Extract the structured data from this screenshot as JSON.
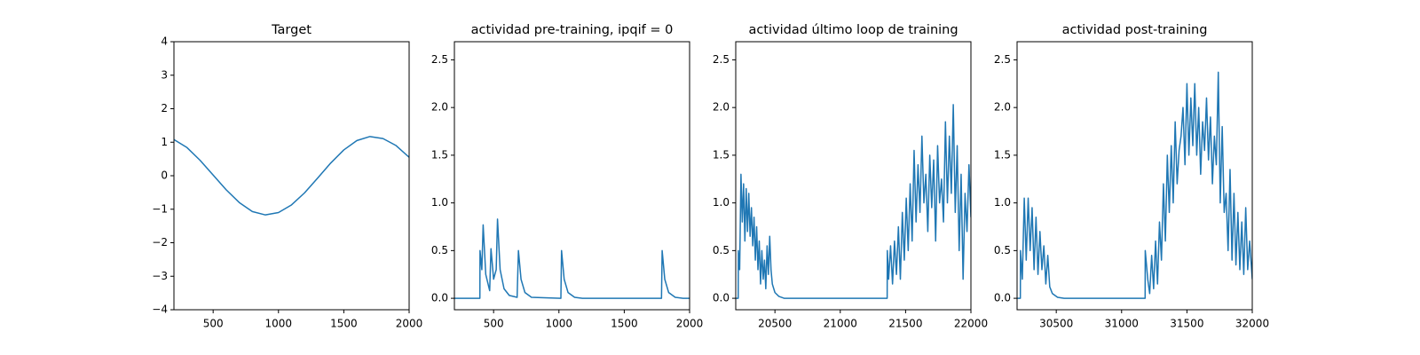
{
  "chart_data": [
    {
      "type": "line",
      "title": "Target",
      "color": "#1f77b4",
      "x": [
        200,
        300,
        400,
        500,
        600,
        700,
        800,
        900,
        1000,
        1100,
        1200,
        1300,
        1400,
        1500,
        1600,
        1700,
        1800,
        1900,
        2000
      ],
      "values": [
        1.08,
        0.84,
        0.46,
        0.02,
        -0.42,
        -0.8,
        -1.07,
        -1.17,
        -1.1,
        -0.87,
        -0.51,
        -0.07,
        0.38,
        0.77,
        1.05,
        1.17,
        1.11,
        0.9,
        0.55
      ],
      "xlim": [
        200,
        2000
      ],
      "xticks": [
        500,
        1000,
        1500,
        2000
      ],
      "ylim": [
        -4,
        4
      ],
      "yticks": [
        {
          "value": -4,
          "label": "−4"
        },
        {
          "value": -3,
          "label": "−3"
        },
        {
          "value": -2,
          "label": "−2"
        },
        {
          "value": -1,
          "label": "−1"
        },
        0,
        1,
        2,
        3,
        4
      ]
    },
    {
      "type": "line",
      "title": "actividad pre-training, ipqif = 0",
      "color": "#1f77b4",
      "x": [
        200,
        395,
        396,
        410,
        420,
        440,
        470,
        480,
        500,
        520,
        530,
        550,
        580,
        620,
        680,
        690,
        710,
        740,
        790,
        1015,
        1020,
        1040,
        1070,
        1120,
        1180,
        1785,
        1790,
        1810,
        1840,
        1890,
        1950,
        2000
      ],
      "values": [
        0,
        0,
        0.5,
        0.3,
        0.77,
        0.25,
        0.08,
        0.52,
        0.2,
        0.3,
        0.83,
        0.3,
        0.1,
        0.03,
        0.01,
        0.5,
        0.2,
        0.06,
        0.01,
        0,
        0.5,
        0.2,
        0.06,
        0.01,
        0,
        0,
        0.5,
        0.2,
        0.06,
        0.01,
        0,
        0
      ],
      "xlim": [
        200,
        2000
      ],
      "xticks": [
        500,
        1000,
        1500,
        2000
      ],
      "ylim": [
        -0.12,
        2.69
      ],
      "yticks": [
        {
          "value": 0,
          "label": "0.0"
        },
        {
          "value": 0.5,
          "label": "0.5"
        },
        {
          "value": 1,
          "label": "1.0"
        },
        {
          "value": 1.5,
          "label": "1.5"
        },
        {
          "value": 2,
          "label": "2.0"
        },
        {
          "value": 2.5,
          "label": "2.5"
        }
      ]
    },
    {
      "type": "line",
      "title": "actividad último loop de training",
      "color": "#1f77b4",
      "x": [
        20200,
        20219,
        20220,
        20230,
        20240,
        20250,
        20260,
        20270,
        20280,
        20290,
        20300,
        20310,
        20320,
        20330,
        20340,
        20350,
        20360,
        20370,
        20380,
        20390,
        20400,
        20410,
        20420,
        20430,
        20440,
        20450,
        20460,
        20470,
        20480,
        20500,
        20530,
        20570,
        21359,
        21360,
        21370,
        21385,
        21400,
        21415,
        21430,
        21445,
        21460,
        21475,
        21490,
        21505,
        21520,
        21535,
        21550,
        21565,
        21580,
        21595,
        21610,
        21625,
        21640,
        21655,
        21670,
        21685,
        21700,
        21715,
        21730,
        21745,
        21760,
        21775,
        21790,
        21805,
        21820,
        21835,
        21850,
        21865,
        21880,
        21895,
        21910,
        21925,
        21940,
        21955,
        21970,
        21985,
        22000
      ],
      "values": [
        0,
        0,
        0.5,
        0.3,
        1.3,
        0.8,
        1.2,
        0.6,
        1.15,
        0.7,
        1.1,
        0.65,
        0.95,
        0.55,
        0.85,
        0.4,
        0.75,
        0.3,
        0.6,
        0.15,
        0.5,
        0.2,
        0.4,
        0.1,
        0.55,
        0.25,
        0.65,
        0.3,
        0.15,
        0.06,
        0.02,
        0,
        0,
        0.5,
        0.2,
        0.55,
        0.15,
        0.6,
        0.25,
        0.75,
        0.2,
        0.9,
        0.4,
        1.05,
        0.5,
        1.2,
        0.6,
        1.55,
        0.8,
        1.4,
        0.9,
        1.7,
        1.0,
        1.3,
        0.7,
        1.5,
        0.95,
        1.45,
        0.6,
        1.6,
        1.0,
        1.25,
        0.8,
        1.85,
        1.0,
        1.7,
        1.1,
        2.03,
        0.9,
        1.6,
        0.5,
        1.3,
        0.2,
        1.1,
        0.7,
        1.4,
        0.85
      ],
      "xlim": [
        20200,
        22000
      ],
      "xticks": [
        20500,
        21000,
        21500,
        22000
      ],
      "ylim": [
        -0.12,
        2.69
      ],
      "yticks": [
        {
          "value": 0,
          "label": "0.0"
        },
        {
          "value": 0.5,
          "label": "0.5"
        },
        {
          "value": 1,
          "label": "1.0"
        },
        {
          "value": 1.5,
          "label": "1.5"
        },
        {
          "value": 2,
          "label": "2.0"
        },
        {
          "value": 2.5,
          "label": "2.5"
        }
      ]
    },
    {
      "type": "line",
      "title": "actividad post-training",
      "color": "#1f77b4",
      "x": [
        30200,
        30225,
        30226,
        30240,
        30255,
        30270,
        30285,
        30300,
        30315,
        30330,
        30345,
        30360,
        30375,
        30390,
        30405,
        30420,
        30435,
        30450,
        30470,
        30510,
        30560,
        31180,
        31181,
        31200,
        31215,
        31230,
        31245,
        31260,
        31275,
        31290,
        31305,
        31320,
        31335,
        31350,
        31365,
        31380,
        31395,
        31410,
        31425,
        31440,
        31455,
        31470,
        31485,
        31500,
        31515,
        31530,
        31545,
        31560,
        31575,
        31590,
        31605,
        31620,
        31635,
        31650,
        31665,
        31680,
        31695,
        31710,
        31725,
        31740,
        31755,
        31770,
        31785,
        31800,
        31815,
        31830,
        31845,
        31860,
        31875,
        31890,
        31905,
        31920,
        31935,
        31950,
        31965,
        31980,
        32000
      ],
      "values": [
        0,
        0,
        0.5,
        0.2,
        1.05,
        0.4,
        1.05,
        0.5,
        0.95,
        0.3,
        0.85,
        0.25,
        0.7,
        0.3,
        0.55,
        0.15,
        0.45,
        0.12,
        0.05,
        0.01,
        0,
        0,
        0.5,
        0.2,
        0.05,
        0.45,
        0.1,
        0.6,
        0.15,
        0.8,
        0.4,
        1.2,
        0.6,
        1.5,
        0.9,
        1.6,
        1.0,
        1.85,
        1.2,
        1.55,
        1.7,
        2.0,
        1.4,
        2.25,
        1.5,
        2.1,
        1.6,
        2.25,
        1.5,
        2.0,
        1.3,
        1.85,
        1.55,
        2.1,
        1.45,
        1.9,
        1.2,
        1.7,
        1.4,
        2.37,
        1.0,
        1.8,
        0.9,
        1.1,
        0.5,
        1.35,
        0.4,
        1.1,
        0.35,
        0.9,
        0.3,
        0.8,
        0.25,
        0.95,
        0.3,
        0.6,
        0.2
      ],
      "xlim": [
        30200,
        32000
      ],
      "xticks": [
        30500,
        31000,
        31500,
        32000
      ],
      "ylim": [
        -0.12,
        2.69
      ],
      "yticks": [
        {
          "value": 0,
          "label": "0.0"
        },
        {
          "value": 0.5,
          "label": "0.5"
        },
        {
          "value": 1,
          "label": "1.0"
        },
        {
          "value": 1.5,
          "label": "1.5"
        },
        {
          "value": 2,
          "label": "2.0"
        },
        {
          "value": 2.5,
          "label": "2.5"
        }
      ]
    }
  ]
}
